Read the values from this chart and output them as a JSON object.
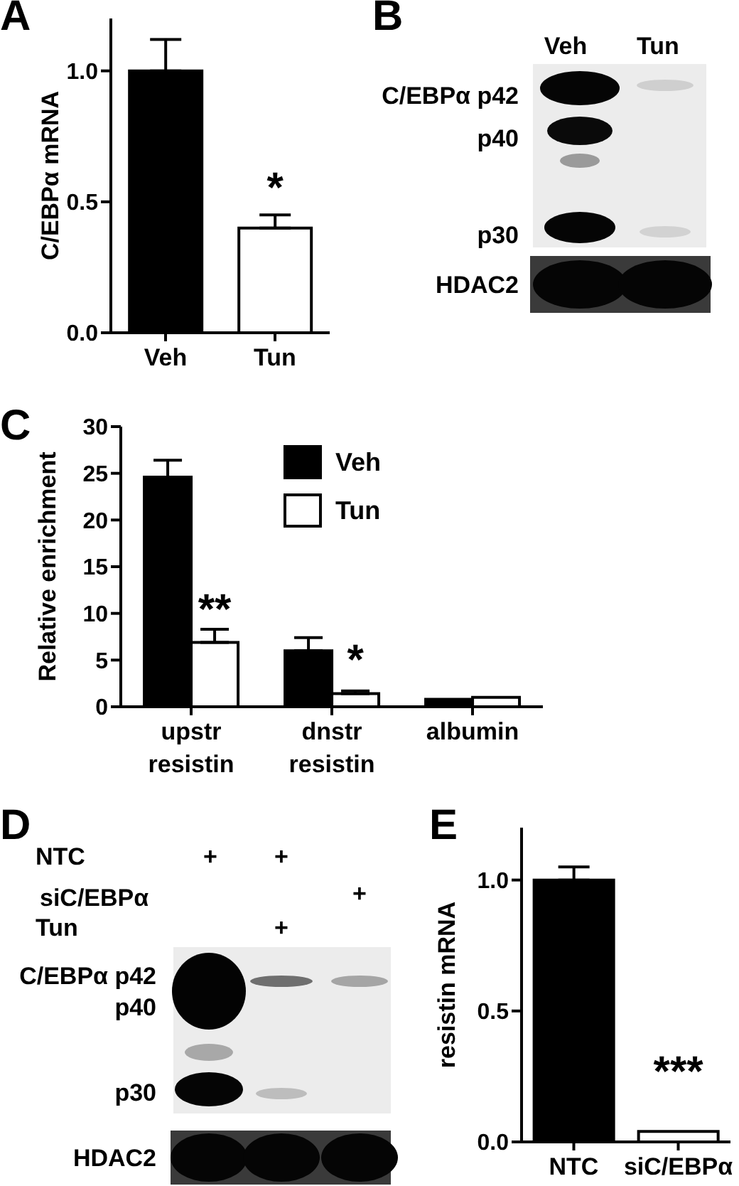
{
  "chart_data": [
    {
      "type": "bar",
      "title": "A",
      "ylabel": "C/EBPα mRNA",
      "categories": [
        "Veh",
        "Tun"
      ],
      "values": [
        1.0,
        0.4
      ],
      "colors": [
        "#000000",
        "#ffffff"
      ],
      "errors": [
        [
          1.0,
          1.12
        ],
        [
          0.4,
          0.45
        ]
      ],
      "ylim": [
        0,
        1.2
      ],
      "yticks": [
        {
          "value": 0,
          "label": "0.0"
        },
        {
          "value": 0.5,
          "label": "0.5"
        },
        {
          "value": 1,
          "label": "1.0"
        }
      ],
      "annotations": [
        {
          "text": "*",
          "x": "Tun",
          "y": 0.45
        }
      ]
    },
    {
      "type": "other",
      "title": "B",
      "annotations": [
        "Veh",
        "Tun",
        "C/EBPα p42",
        "p40",
        "p30",
        "HDAC2"
      ]
    },
    {
      "type": "bar",
      "title": "C",
      "ylabel": "Relative enrichment",
      "categories": [
        "upstr\nresistin",
        "dnstr\nresistin",
        "albumin"
      ],
      "series": [
        {
          "name": "Veh",
          "color": "#000000",
          "values": [
            24.6,
            6.0,
            0.8
          ],
          "errors": [
            [
              24.6,
              26.4
            ],
            [
              6.0,
              7.4
            ],
            null
          ]
        },
        {
          "name": "Tun",
          "color": "#ffffff",
          "values": [
            6.9,
            1.4,
            1.0
          ],
          "errors": [
            [
              6.9,
              8.3
            ],
            [
              1.4,
              1.7
            ],
            null
          ]
        }
      ],
      "ylim": [
        0,
        30
      ],
      "yticks": [
        0,
        5,
        10,
        15,
        20,
        25,
        30
      ],
      "legend": "top",
      "annotations": [
        {
          "text": "**",
          "x": "upstr\nresistin",
          "y": 8.3
        },
        {
          "text": "*",
          "x": "dnstr\nresistin",
          "y": 1.7
        }
      ]
    },
    {
      "type": "other",
      "title": "D",
      "annotations": [
        "NTC",
        "+",
        "+",
        "siC/EBPα",
        "+",
        "Tun",
        "+",
        "C/EBPα p42",
        "p40",
        "p30",
        "HDAC2"
      ]
    },
    {
      "type": "bar",
      "title": "E",
      "ylabel": "resistin mRNA",
      "categories": [
        "NTC",
        "siC/EBPα"
      ],
      "values": [
        1.0,
        0.04
      ],
      "colors": [
        "#000000",
        "#ffffff"
      ],
      "errors": [
        [
          1.0,
          1.05
        ],
        null
      ],
      "ylim": [
        0,
        1.2
      ],
      "yticks": [
        {
          "value": 0,
          "label": "0.0"
        },
        {
          "value": 0.5,
          "label": "0.5"
        },
        {
          "value": 1,
          "label": "1.0"
        }
      ],
      "annotations": [
        {
          "text": "***",
          "x": "siC/EBPα",
          "y": 0.04
        }
      ]
    }
  ]
}
